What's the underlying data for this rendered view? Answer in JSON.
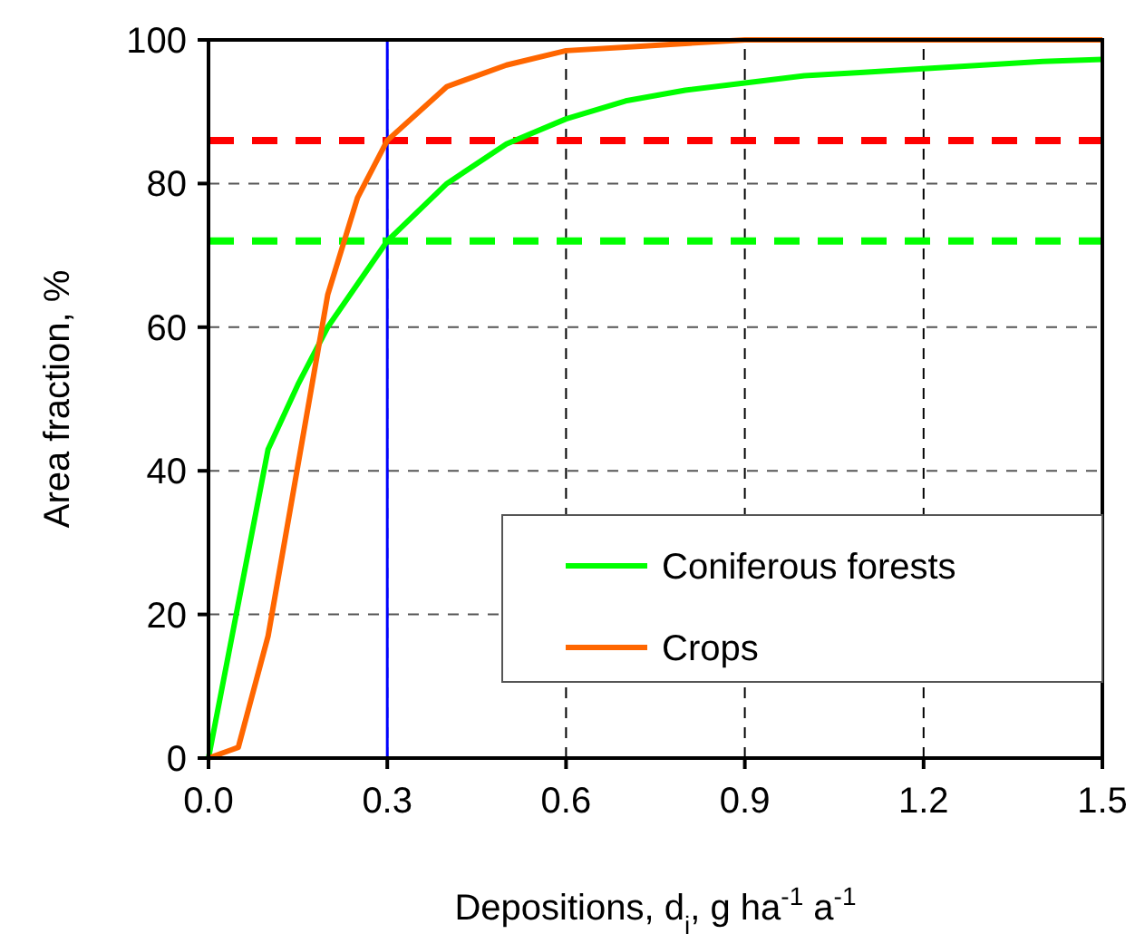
{
  "chart_data": {
    "type": "line",
    "xlabel": "Depositions, d$_{i}$, g ha$^{-1}$ a$^{-1}$",
    "ylabel": "Area fraction, %",
    "xlim": [
      0,
      1.5
    ],
    "ylim": [
      0,
      100
    ],
    "xticks": [
      {
        "value": 0,
        "label": "0.0"
      },
      0.3,
      0.6,
      0.9,
      1.2,
      1.5
    ],
    "yticks": [
      0,
      20,
      40,
      60,
      80,
      100
    ],
    "grid": true,
    "legend": "bottom right",
    "marker": "none",
    "line_style": "solid",
    "series": [
      {
        "name": "Coniferous forests",
        "color": "#00ff00",
        "x": [
          0,
          0.1,
          0.15,
          0.2,
          0.3,
          0.4,
          0.5,
          0.6,
          0.7,
          0.8,
          0.9,
          1.0,
          1.1,
          1.2,
          1.3,
          1.4,
          1.5
        ],
        "values": [
          0,
          43,
          52,
          60,
          72,
          80,
          85.5,
          89,
          91.5,
          93,
          94,
          95,
          95.5,
          96,
          96.5,
          97,
          97.3
        ]
      },
      {
        "name": "Crops",
        "color": "#ff6600",
        "x": [
          0,
          0.05,
          0.1,
          0.2,
          0.25,
          0.3,
          0.4,
          0.5,
          0.6,
          0.7,
          0.8,
          0.9,
          1.2,
          1.5
        ],
        "values": [
          0,
          1.5,
          17,
          64.5,
          78,
          86,
          93.5,
          96.5,
          98.5,
          99,
          99.5,
          100,
          100,
          100
        ]
      }
    ],
    "ref_lines": [
      {
        "axis": "y",
        "value": 86,
        "color": "#ff0000",
        "line_style": "dashed"
      },
      {
        "axis": "y",
        "value": 72,
        "color": "#00ff00",
        "line_style": "dashed"
      },
      {
        "axis": "x",
        "value": 0.3,
        "color": "#0000ff",
        "line_style": "solid"
      }
    ]
  }
}
